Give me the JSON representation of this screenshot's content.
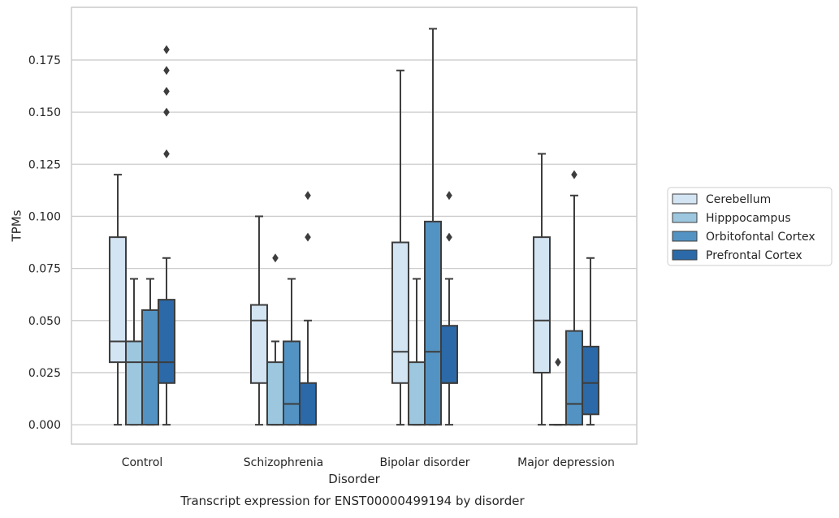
{
  "chart_data": {
    "type": "boxplot",
    "title": "",
    "caption": "Transcript expression for ENST00000499194 by disorder",
    "xlabel": "Disorder",
    "ylabel": "TPMs",
    "ylim": [
      -0.0093,
      0.2003
    ],
    "yticks": [
      "0.000",
      "0.025",
      "0.050",
      "0.075",
      "0.100",
      "0.125",
      "0.150",
      "0.175"
    ],
    "grid": true,
    "legend_position": "right",
    "categories": [
      "Control",
      "Schizophrenia",
      "Bipolar disorder",
      "Major depression"
    ],
    "series": [
      {
        "name": "Cerebellum",
        "color": "#d3e4f3",
        "boxes": [
          {
            "whislo": 0.0,
            "q1": 0.03,
            "med": 0.04,
            "q3": 0.09,
            "whishi": 0.12,
            "fliers": []
          },
          {
            "whislo": 0.0,
            "q1": 0.02,
            "med": 0.05,
            "q3": 0.0575,
            "whishi": 0.1,
            "fliers": []
          },
          {
            "whislo": 0.0,
            "q1": 0.02,
            "med": 0.035,
            "q3": 0.0875,
            "whishi": 0.17,
            "fliers": []
          },
          {
            "whislo": 0.0,
            "q1": 0.025,
            "med": 0.05,
            "q3": 0.09,
            "whishi": 0.13,
            "fliers": []
          }
        ]
      },
      {
        "name": "Hipppocampus",
        "color": "#9cc7df",
        "boxes": [
          {
            "whislo": 0.0,
            "q1": 0.0,
            "med": 0.03,
            "q3": 0.04,
            "whishi": 0.07,
            "fliers": []
          },
          {
            "whislo": 0.0,
            "q1": 0.0,
            "med": 0.0,
            "q3": 0.03,
            "whishi": 0.04,
            "fliers": [
              0.08
            ]
          },
          {
            "whislo": 0.0,
            "q1": 0.0,
            "med": 0.0,
            "q3": 0.03,
            "whishi": 0.07,
            "fliers": []
          },
          {
            "whislo": 0.0,
            "q1": 0.0,
            "med": 0.0,
            "q3": 0.0,
            "whishi": 0.0,
            "fliers": [
              0.03
            ]
          }
        ]
      },
      {
        "name": "Orbitofontal Cortex",
        "color": "#5393c3",
        "boxes": [
          {
            "whislo": 0.0,
            "q1": 0.0,
            "med": 0.03,
            "q3": 0.055,
            "whishi": 0.07,
            "fliers": []
          },
          {
            "whislo": 0.0,
            "q1": 0.0,
            "med": 0.01,
            "q3": 0.04,
            "whishi": 0.07,
            "fliers": []
          },
          {
            "whislo": 0.0,
            "q1": 0.0,
            "med": 0.035,
            "q3": 0.0975,
            "whishi": 0.19,
            "fliers": []
          },
          {
            "whislo": 0.0,
            "q1": 0.0,
            "med": 0.01,
            "q3": 0.045,
            "whishi": 0.11,
            "fliers": [
              0.12
            ]
          }
        ]
      },
      {
        "name": "Prefrontal Cortex",
        "color": "#2b69a8",
        "boxes": [
          {
            "whislo": 0.0,
            "q1": 0.02,
            "med": 0.03,
            "q3": 0.06,
            "whishi": 0.08,
            "fliers": [
              0.13,
              0.15,
              0.16,
              0.17,
              0.18
            ]
          },
          {
            "whislo": 0.0,
            "q1": 0.0,
            "med": 0.0,
            "q3": 0.02,
            "whishi": 0.05,
            "fliers": [
              0.09,
              0.11
            ]
          },
          {
            "whislo": 0.0,
            "q1": 0.02,
            "med": 0.02,
            "q3": 0.0475,
            "whishi": 0.07,
            "fliers": [
              0.09,
              0.11
            ]
          },
          {
            "whislo": 0.0,
            "q1": 0.005,
            "med": 0.02,
            "q3": 0.0375,
            "whishi": 0.08,
            "fliers": []
          }
        ]
      }
    ]
  }
}
